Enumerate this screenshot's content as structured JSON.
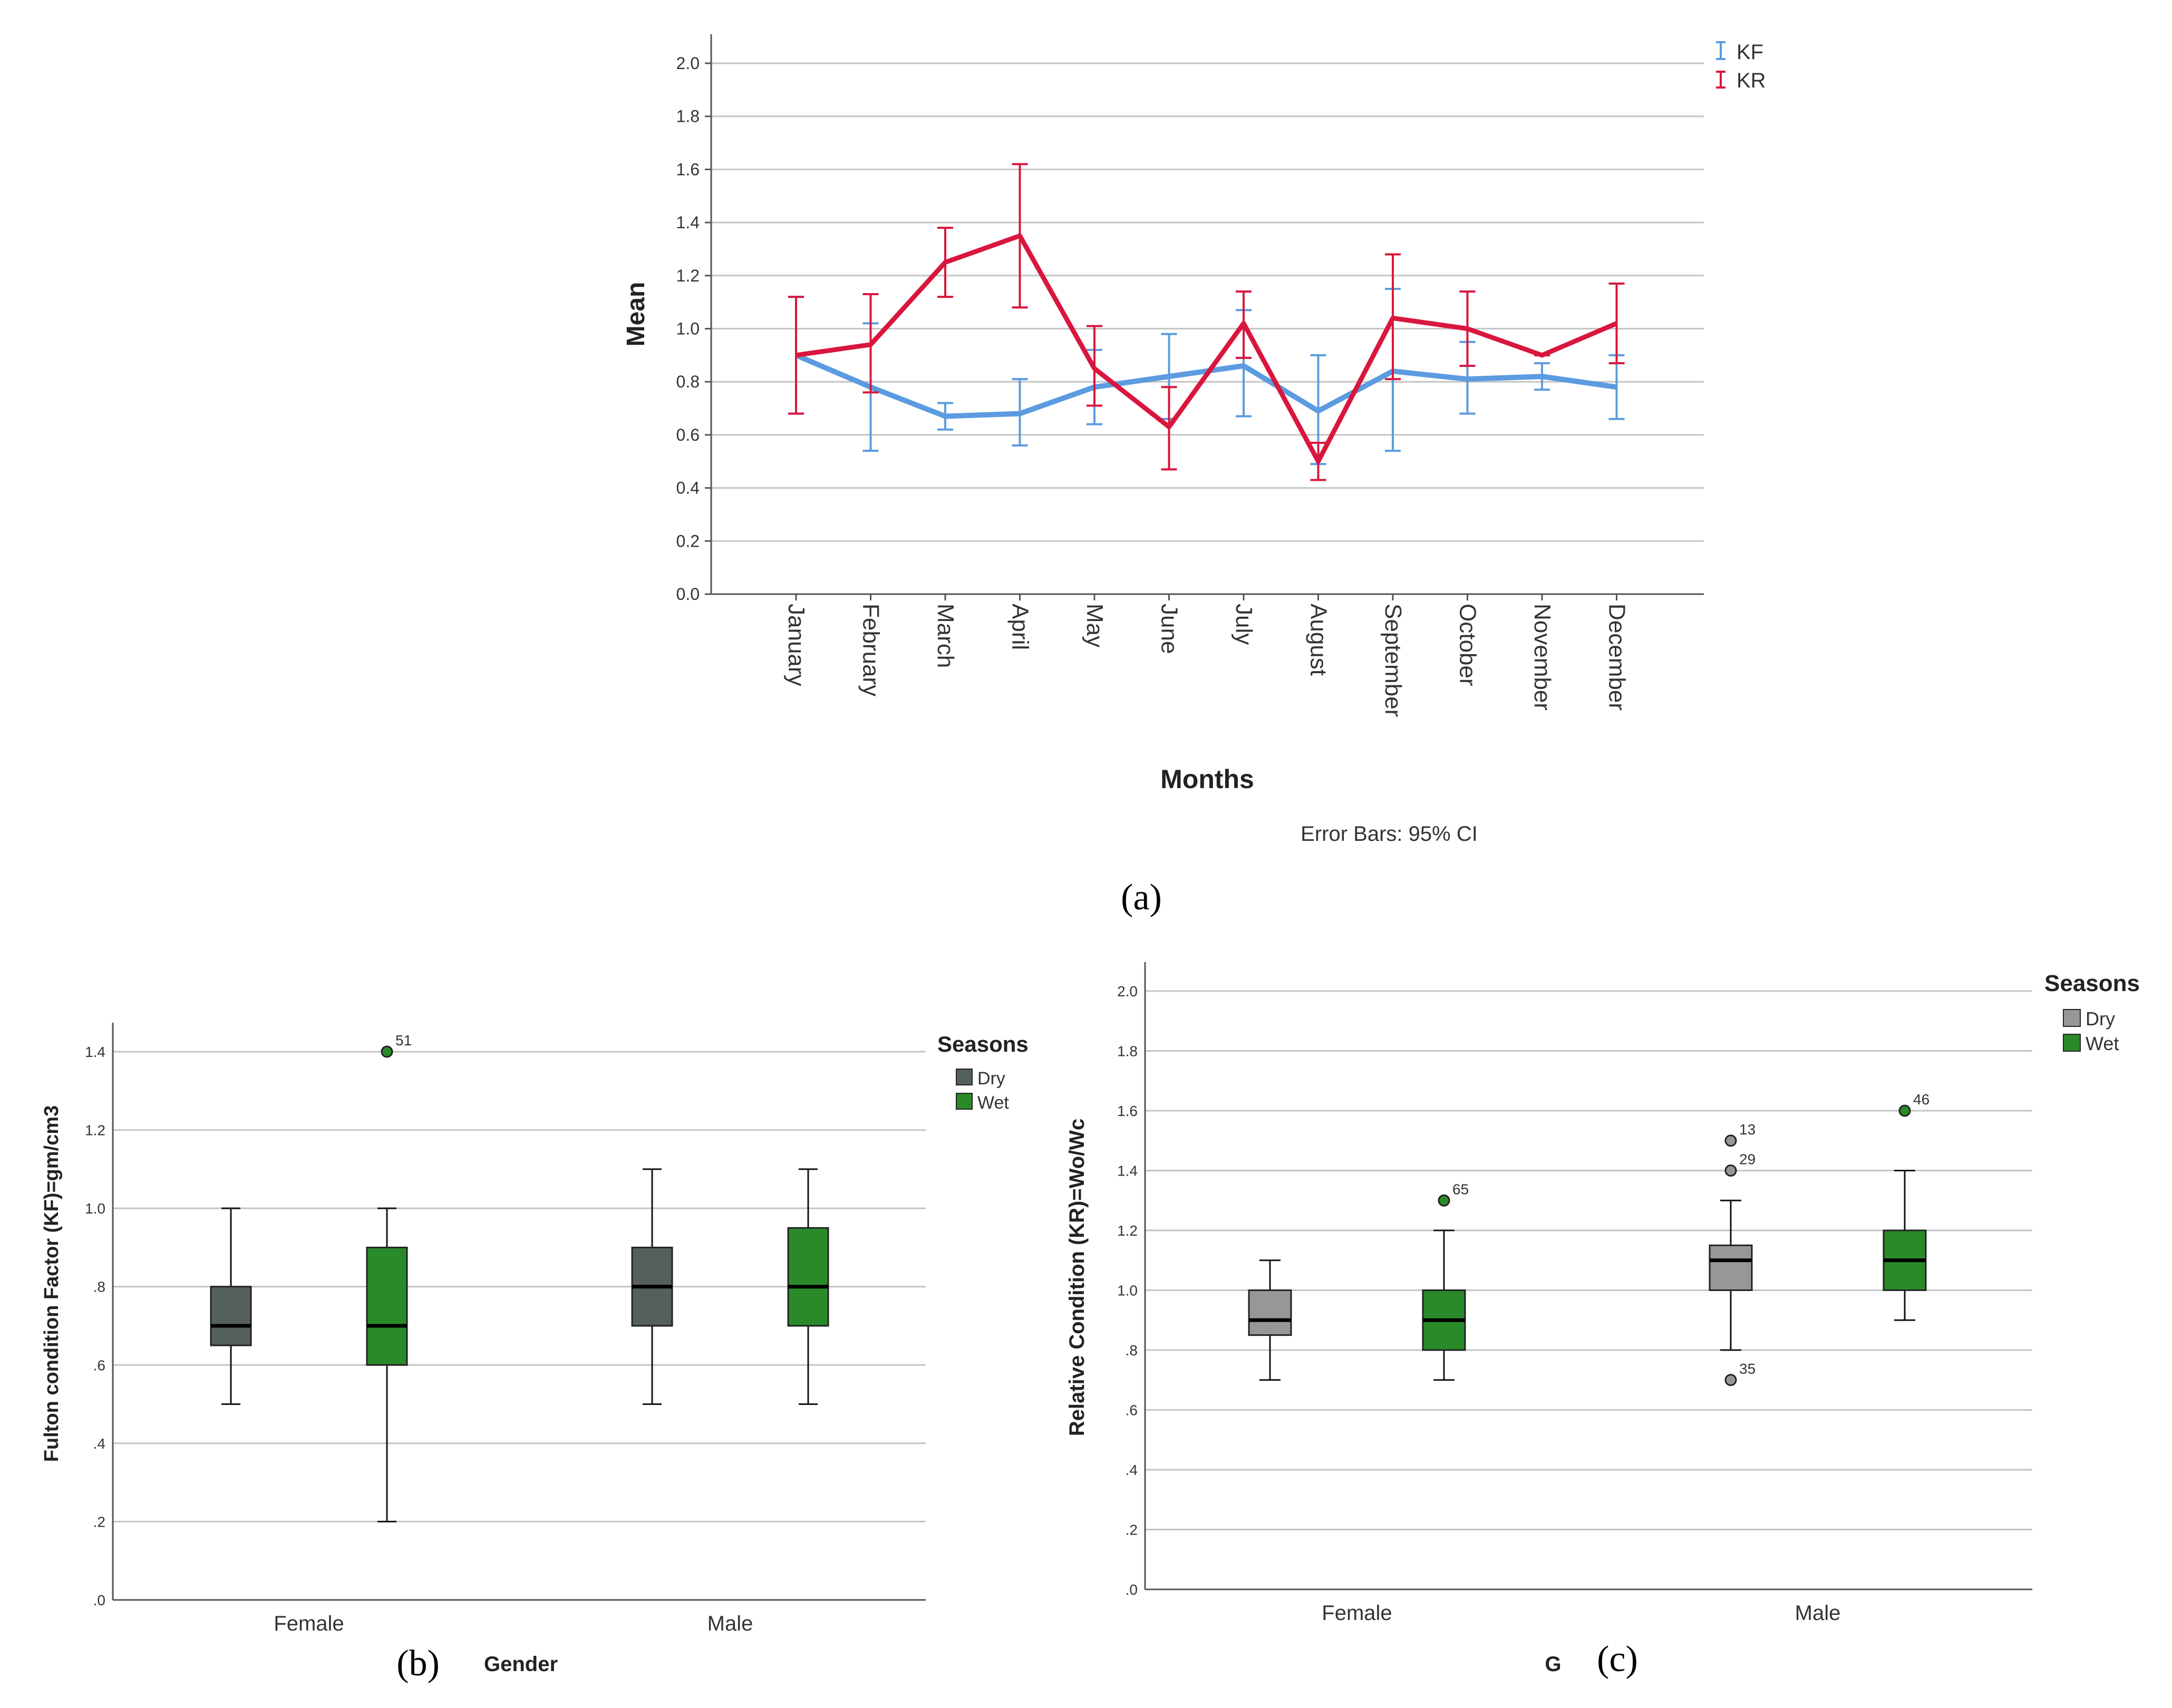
{
  "panel_labels": {
    "a": "(a)",
    "b": "(b)",
    "c": "(c)"
  },
  "colors": {
    "kf": "#5b9be0",
    "kr": "#d9163e",
    "dry_b": "#555f5e",
    "wet": "#2a8a2a",
    "dry_c": "#979797",
    "grid": "#c4c4c4",
    "axis": "#555555"
  },
  "chart_data": [
    {
      "id": "a",
      "type": "line",
      "title": "",
      "xlabel": "Months",
      "ylabel": "Mean",
      "note": "Error Bars: 95% CI",
      "ylim": [
        0,
        2.0
      ],
      "yticks": [
        "0.0",
        "0.2",
        "0.4",
        "0.6",
        "0.8",
        "1.0",
        "1.2",
        "1.4",
        "1.6",
        "1.8",
        "2.0"
      ],
      "grid": true,
      "legend_position": "top-right",
      "categories": [
        "January",
        "February",
        "March",
        "April",
        "May",
        "June",
        "July",
        "August",
        "September",
        "October",
        "November",
        "December"
      ],
      "series": [
        {
          "name": "KF",
          "color": "#5b9be0",
          "values": [
            0.9,
            0.78,
            0.67,
            0.68,
            0.78,
            0.82,
            0.86,
            0.69,
            0.84,
            0.81,
            0.82,
            0.78
          ],
          "ci_low": [
            0.68,
            0.54,
            0.62,
            0.56,
            0.64,
            0.66,
            0.67,
            0.49,
            0.54,
            0.68,
            0.77,
            0.66
          ],
          "ci_high": [
            1.12,
            1.02,
            0.72,
            0.81,
            0.92,
            0.98,
            1.07,
            0.9,
            1.15,
            0.95,
            0.87,
            0.9
          ]
        },
        {
          "name": "KR",
          "color": "#d9163e",
          "values": [
            0.9,
            0.94,
            1.25,
            1.35,
            0.85,
            0.63,
            1.02,
            0.5,
            1.04,
            1.0,
            0.9,
            1.02
          ],
          "ci_low": [
            0.68,
            0.76,
            1.12,
            1.08,
            0.71,
            0.47,
            0.89,
            0.43,
            0.81,
            0.86,
            0.9,
            0.87
          ],
          "ci_high": [
            1.12,
            1.13,
            1.38,
            1.62,
            1.01,
            0.78,
            1.14,
            0.57,
            1.28,
            1.14,
            0.9,
            1.17
          ]
        }
      ]
    },
    {
      "id": "b",
      "type": "box",
      "xlabel": "Gender",
      "ylabel": "Fulton condition Factor (KF)=gm/cm3",
      "ylim": [
        0,
        1.4
      ],
      "yticks": [
        ".0",
        ".2",
        ".4",
        ".6",
        ".8",
        "1.0",
        "1.2",
        "1.4"
      ],
      "grid": true,
      "legend_title": "Seasons",
      "legend_position": "right",
      "categories": [
        "Female",
        "Male"
      ],
      "series": [
        {
          "name": "Dry",
          "color": "#555f5e"
        },
        {
          "name": "Wet",
          "color": "#2a8a2a"
        }
      ],
      "boxes": [
        {
          "group": "Female",
          "season": "Dry",
          "min": 0.5,
          "q1": 0.65,
          "median": 0.7,
          "q3": 0.8,
          "max": 1.0,
          "outliers": []
        },
        {
          "group": "Female",
          "season": "Wet",
          "min": 0.2,
          "q1": 0.6,
          "median": 0.7,
          "q3": 0.9,
          "max": 1.0,
          "outliers": [
            {
              "value": 1.4,
              "label": "51"
            }
          ]
        },
        {
          "group": "Male",
          "season": "Dry",
          "min": 0.5,
          "q1": 0.7,
          "median": 0.8,
          "q3": 0.9,
          "max": 1.1,
          "outliers": []
        },
        {
          "group": "Male",
          "season": "Wet",
          "min": 0.5,
          "q1": 0.7,
          "median": 0.8,
          "q3": 0.95,
          "max": 1.1,
          "outliers": []
        }
      ]
    },
    {
      "id": "c",
      "type": "box",
      "xlabel": "G",
      "ylabel": "Relative Condition (KR)=Wo/Wc",
      "ylim": [
        0,
        2.0
      ],
      "yticks": [
        ".0",
        ".2",
        ".4",
        ".6",
        ".8",
        "1.0",
        "1.2",
        "1.4",
        "1.6",
        "1.8",
        "2.0"
      ],
      "grid": true,
      "legend_title": "Seasons",
      "legend_position": "top-right",
      "categories": [
        "Female",
        "Male"
      ],
      "series": [
        {
          "name": "Dry",
          "color": "#979797"
        },
        {
          "name": "Wet",
          "color": "#2a8a2a"
        }
      ],
      "boxes": [
        {
          "group": "Female",
          "season": "Dry",
          "min": 0.7,
          "q1": 0.85,
          "median": 0.9,
          "q3": 1.0,
          "max": 1.1,
          "outliers": []
        },
        {
          "group": "Female",
          "season": "Wet",
          "min": 0.7,
          "q1": 0.8,
          "median": 0.9,
          "q3": 1.0,
          "max": 1.2,
          "outliers": [
            {
              "value": 1.3,
              "label": "65"
            }
          ]
        },
        {
          "group": "Male",
          "season": "Dry",
          "min": 0.8,
          "q1": 1.0,
          "median": 1.1,
          "q3": 1.15,
          "max": 1.3,
          "outliers": [
            {
              "value": 1.5,
              "label": "13"
            },
            {
              "value": 1.4,
              "label": "29"
            },
            {
              "value": 0.7,
              "label": "35"
            }
          ]
        },
        {
          "group": "Male",
          "season": "Wet",
          "min": 0.9,
          "q1": 1.0,
          "median": 1.1,
          "q3": 1.2,
          "max": 1.4,
          "outliers": [
            {
              "value": 1.6,
              "label": "46"
            }
          ]
        }
      ]
    }
  ]
}
